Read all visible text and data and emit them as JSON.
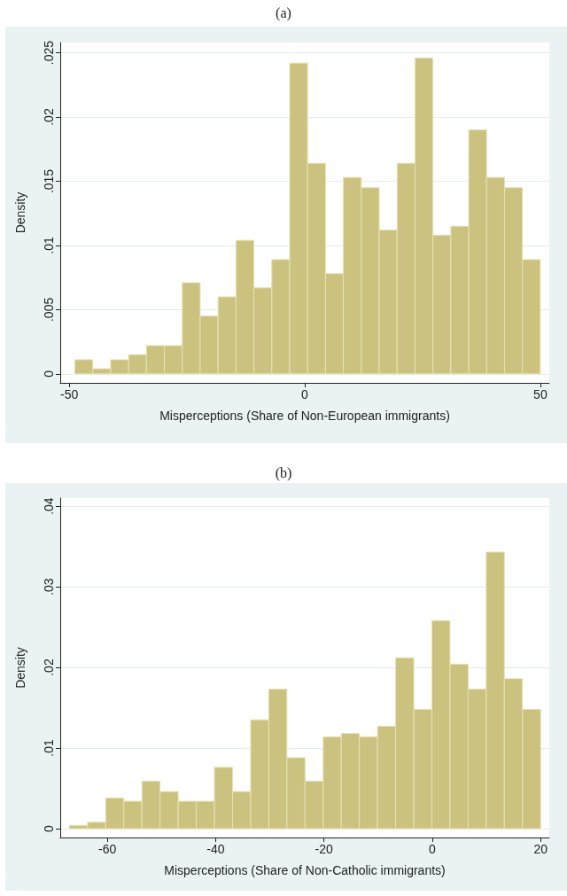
{
  "chart_data": [
    {
      "type": "histogram",
      "title": "(a)",
      "xlabel": "Misperceptions (Share of Non-European immigrants)",
      "ylabel": "Density",
      "color": "#cbc27f",
      "grid": "y",
      "bins": [
        -48.8,
        -45,
        -41.2,
        -37.4,
        -33.6,
        -29.8,
        -26,
        -22.2,
        -18.4,
        -14.6,
        -10.8,
        -7,
        -3.2,
        0.6,
        4.4,
        8.2,
        12,
        15.8,
        19.6,
        23.4,
        27.2,
        31,
        34.8,
        38.6,
        42.4,
        46.2,
        50
      ],
      "values": [
        0.0011,
        0.0004,
        0.0011,
        0.0015,
        0.0022,
        0.0022,
        0.0071,
        0.0045,
        0.006,
        0.0104,
        0.0067,
        0.0089,
        0.0242,
        0.0164,
        0.0078,
        0.0153,
        0.0145,
        0.0112,
        0.0164,
        0.0246,
        0.0108,
        0.0115,
        0.019,
        0.0153,
        0.0145,
        0.0089
      ],
      "xlim": [
        -51.9,
        51.9
      ],
      "xticks": [
        -50,
        0,
        50
      ],
      "ylim": [
        -0.0007,
        0.0258
      ],
      "yticks": [
        0,
        {
          "value": 0.005,
          "label": ".005"
        },
        {
          "value": 0.01,
          "label": ".01"
        },
        {
          "value": 0.015,
          "label": ".015"
        },
        {
          "value": 0.02,
          "label": ".02"
        },
        {
          "value": 0.025,
          "label": ".025"
        }
      ]
    },
    {
      "type": "histogram",
      "title": "(b)",
      "xlabel": "Misperceptions (Share of Non-Catholic immigrants)",
      "ylabel": "Density",
      "color": "#cbc27f",
      "grid": "y",
      "bins": [
        -67,
        -63.65,
        -60.31,
        -56.96,
        -53.62,
        -50.27,
        -46.92,
        -43.58,
        -40.23,
        -36.88,
        -33.54,
        -30.19,
        -26.85,
        -23.5,
        -20.15,
        -16.81,
        -13.46,
        -10.12,
        -6.77,
        -3.42,
        -0.08,
        3.27,
        6.62,
        9.96,
        13.31,
        16.65,
        20
      ],
      "values": [
        0.0004,
        0.0008,
        0.0038,
        0.0034,
        0.0059,
        0.0046,
        0.0034,
        0.0034,
        0.0076,
        0.0046,
        0.0135,
        0.0173,
        0.0088,
        0.0059,
        0.0114,
        0.0118,
        0.0114,
        0.0127,
        0.0212,
        0.0148,
        0.0258,
        0.0204,
        0.0173,
        0.0343,
        0.0186,
        0.0148
      ],
      "xlim": [
        -68.7,
        21.6
      ],
      "xticks": [
        -60,
        -40,
        -20,
        0,
        20
      ],
      "ylim": [
        -0.0011,
        0.041
      ],
      "yticks": [
        0,
        {
          "value": 0.01,
          "label": ".01"
        },
        {
          "value": 0.02,
          "label": ".02"
        },
        {
          "value": 0.03,
          "label": ".03"
        },
        {
          "value": 0.04,
          "label": ".04"
        }
      ]
    }
  ]
}
